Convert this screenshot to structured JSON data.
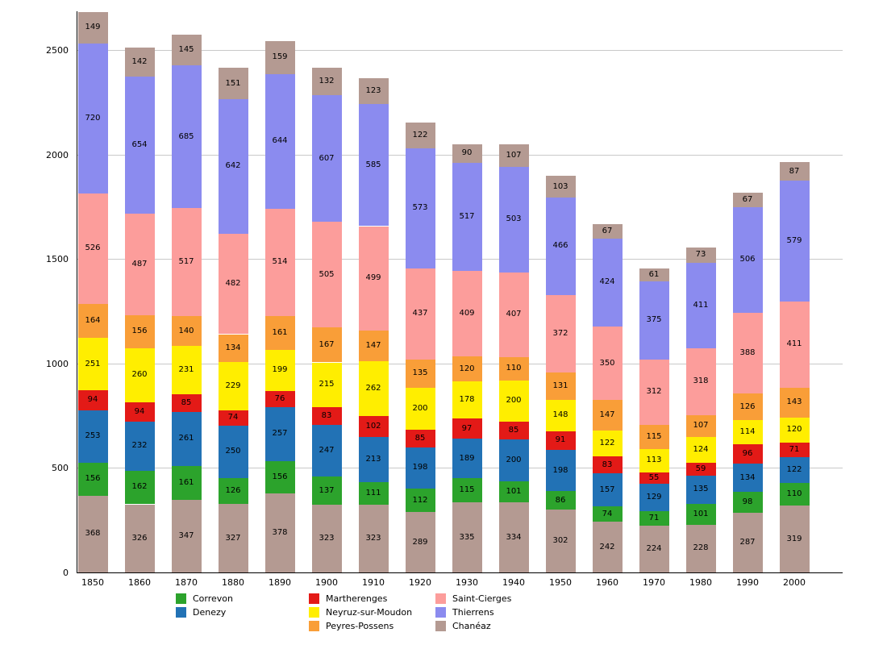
{
  "chart_data": {
    "type": "bar",
    "stacked": true,
    "title": "",
    "xlabel": "",
    "ylabel": "",
    "ylim": [
      0,
      2500
    ],
    "yticks": [
      0,
      500,
      1000,
      1500,
      2000,
      2500
    ],
    "grid": true,
    "legend_position": "bottom",
    "categories": [
      "1850",
      "1860",
      "1870",
      "1880",
      "1890",
      "1900",
      "1910",
      "1920",
      "1930",
      "1940",
      "1950",
      "1960",
      "1970",
      "1980",
      "1990",
      "2000"
    ],
    "series": [
      {
        "name": "",
        "color": "#b49a92",
        "values": [
          368,
          326,
          347,
          327,
          378,
          323,
          323,
          289,
          335,
          334,
          302,
          242,
          224,
          228,
          287,
          319
        ]
      },
      {
        "name": "Correvon",
        "color": "#2ca32c",
        "values": [
          156,
          162,
          161,
          126,
          156,
          137,
          111,
          112,
          115,
          101,
          86,
          74,
          71,
          101,
          98,
          110
        ]
      },
      {
        "name": "Denezy",
        "color": "#2272b5",
        "values": [
          253,
          232,
          261,
          250,
          257,
          247,
          213,
          198,
          189,
          200,
          198,
          157,
          129,
          135,
          134,
          122
        ]
      },
      {
        "name": "Martherenges",
        "color": "#e31a17",
        "values": [
          94,
          94,
          85,
          74,
          76,
          83,
          102,
          85,
          97,
          85,
          91,
          83,
          55,
          59,
          96,
          71
        ]
      },
      {
        "name": "Neyruz-sur-Moudon",
        "color": "#ffee00",
        "values": [
          251,
          260,
          231,
          229,
          199,
          215,
          262,
          200,
          178,
          200,
          148,
          122,
          113,
          124,
          114,
          120
        ]
      },
      {
        "name": "Peyres-Possens",
        "color": "#f99e38",
        "values": [
          164,
          156,
          140,
          134,
          161,
          167,
          147,
          135,
          120,
          110,
          131,
          147,
          115,
          107,
          126,
          143
        ]
      },
      {
        "name": "Saint-Cierges",
        "color": "#fc9d9b",
        "values": [
          526,
          487,
          517,
          482,
          514,
          505,
          499,
          437,
          409,
          407,
          372,
          350,
          312,
          318,
          388,
          411
        ]
      },
      {
        "name": "Thierrens",
        "color": "#8b8bef",
        "values": [
          720,
          654,
          685,
          642,
          644,
          607,
          585,
          573,
          517,
          503,
          466,
          424,
          375,
          411,
          506,
          579
        ]
      },
      {
        "name": "Chanéaz",
        "color": "#b49a92",
        "values": [
          149,
          142,
          145,
          151,
          159,
          132,
          123,
          122,
          90,
          107,
          103,
          67,
          61,
          73,
          67,
          87
        ]
      }
    ],
    "legend_columns": [
      [
        "Correvon",
        "Denezy"
      ],
      [
        "Martherenges",
        "Neyruz-sur-Moudon",
        "Peyres-Possens"
      ],
      [
        "Saint-Cierges",
        "Thierrens",
        "Chanéaz"
      ]
    ]
  }
}
